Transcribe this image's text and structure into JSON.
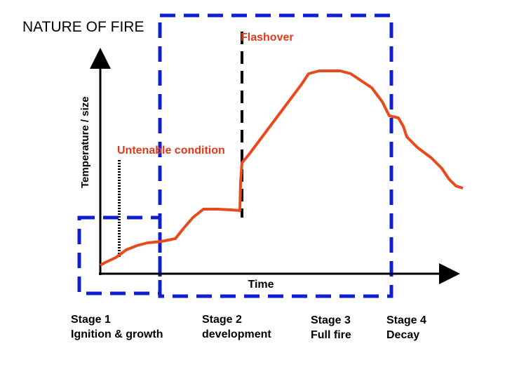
{
  "title": "NATURE OF FIRE",
  "y_axis_label": "Temperature / size",
  "x_axis_label": "Time",
  "annotations": {
    "flashover": "Flashover",
    "untenable": "Untenable condition"
  },
  "stages": [
    {
      "name": "Stage 1",
      "description": "Ignition & growth"
    },
    {
      "name": "Stage 2",
      "description": "development"
    },
    {
      "name": "Stage 3",
      "description": "Full fire"
    },
    {
      "name": "Stage 4",
      "description": "Decay"
    }
  ]
}
